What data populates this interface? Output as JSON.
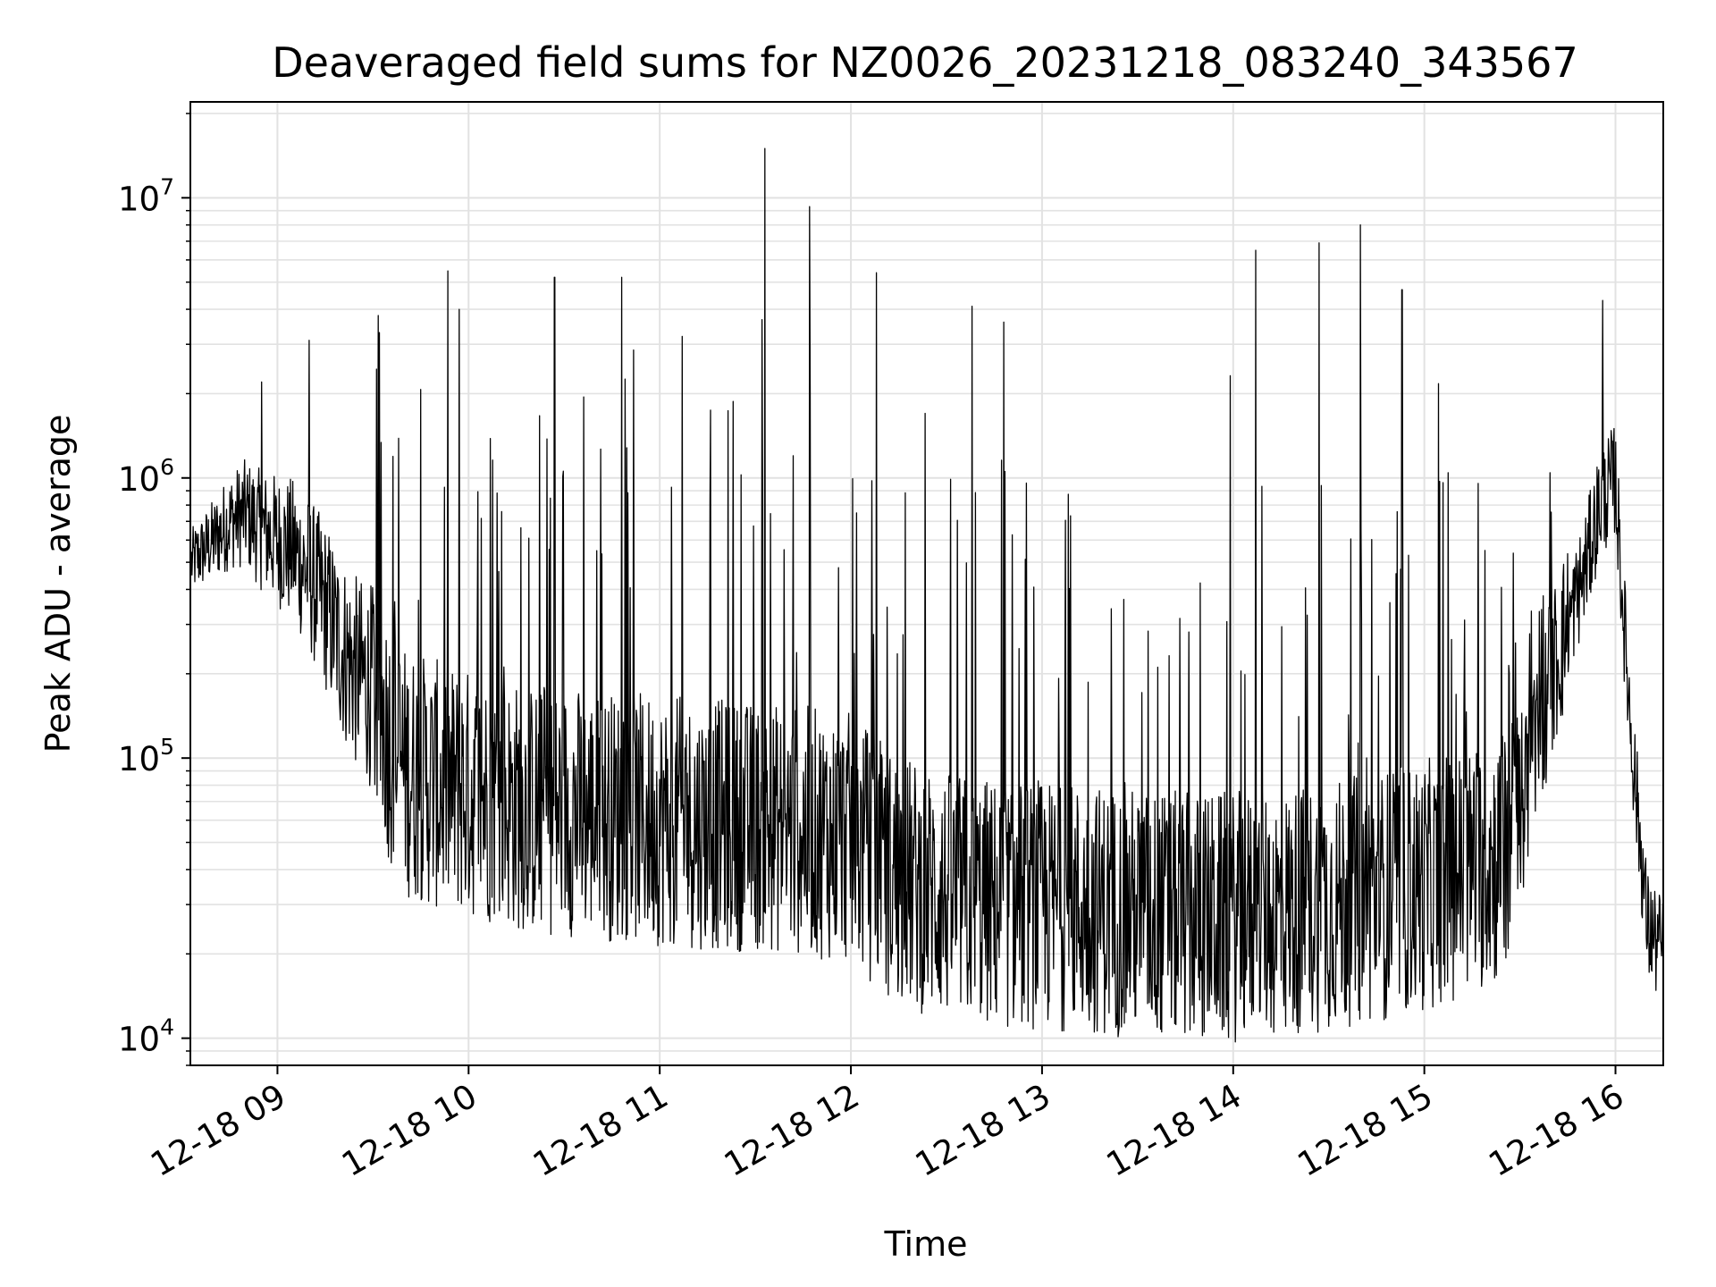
{
  "chart_data": {
    "type": "line",
    "title": "Deaveraged field sums for NZ0026_20231218_083240_343567",
    "xlabel": "Time",
    "ylabel": "Peak ADU - average",
    "yscale": "log",
    "ylim": [
      8000,
      22000000
    ],
    "xlim": [
      "2023-12-18 08:32:40",
      "2023-12-18 16:15:00"
    ],
    "grid": true,
    "line_color": "#000000",
    "x_ticks": [
      {
        "time": "2023-12-18 09:00",
        "label": "12-18 09"
      },
      {
        "time": "2023-12-18 10:00",
        "label": "12-18 10"
      },
      {
        "time": "2023-12-18 11:00",
        "label": "12-18 11"
      },
      {
        "time": "2023-12-18 12:00",
        "label": "12-18 12"
      },
      {
        "time": "2023-12-18 13:00",
        "label": "12-18 13"
      },
      {
        "time": "2023-12-18 14:00",
        "label": "12-18 14"
      },
      {
        "time": "2023-12-18 15:00",
        "label": "12-18 15"
      },
      {
        "time": "2023-12-18 16:00",
        "label": "12-18 16"
      }
    ],
    "y_ticks": [
      {
        "value": 10000,
        "base": "10",
        "exp": "4"
      },
      {
        "value": 100000,
        "base": "10",
        "exp": "5"
      },
      {
        "value": 1000000,
        "base": "10",
        "exp": "6"
      },
      {
        "value": 10000000,
        "base": "10",
        "exp": "7"
      }
    ],
    "series": [
      {
        "x": [
          "2023-12-18 08:33",
          "2023-12-18 08:40",
          "2023-12-18 08:45",
          "2023-12-18 08:50",
          "2023-12-18 08:55",
          "2023-12-18 09:00",
          "2023-12-18 09:05",
          "2023-12-18 09:10",
          "2023-12-18 09:15",
          "2023-12-18 09:20",
          "2023-12-18 09:25",
          "2023-12-18 09:30",
          "2023-12-18 09:35",
          "2023-12-18 09:40",
          "2023-12-18 09:50",
          "2023-12-18 10:00",
          "2023-12-18 10:10",
          "2023-12-18 10:20",
          "2023-12-18 10:30",
          "2023-12-18 10:45",
          "2023-12-18 11:00",
          "2023-12-18 11:15",
          "2023-12-18 11:30",
          "2023-12-18 11:45",
          "2023-12-18 12:00",
          "2023-12-18 12:10",
          "2023-12-18 12:20",
          "2023-12-18 12:30",
          "2023-12-18 12:45",
          "2023-12-18 13:00",
          "2023-12-18 13:15",
          "2023-12-18 13:30",
          "2023-12-18 13:45",
          "2023-12-18 14:00",
          "2023-12-18 14:15",
          "2023-12-18 14:30",
          "2023-12-18 14:45",
          "2023-12-18 15:00",
          "2023-12-18 15:15",
          "2023-12-18 15:25",
          "2023-12-18 15:30",
          "2023-12-18 15:40",
          "2023-12-18 15:50",
          "2023-12-18 15:55",
          "2023-12-18 16:00",
          "2023-12-18 16:02",
          "2023-12-18 16:05",
          "2023-12-18 16:10",
          "2023-12-18 16:15"
        ],
        "y": [
          500000,
          600000,
          700000,
          750000,
          650000,
          600000,
          550000,
          450000,
          350000,
          250000,
          200000,
          180000,
          120000,
          90000,
          80000,
          75000,
          70000,
          65000,
          65000,
          62000,
          60000,
          58000,
          57000,
          55000,
          52000,
          40000,
          35000,
          32000,
          30000,
          30000,
          29000,
          28000,
          27000,
          27000,
          28000,
          30000,
          32000,
          35000,
          40000,
          45000,
          60000,
          200000,
          450000,
          800000,
          1000000,
          400000,
          120000,
          25000,
          20000
        ]
      }
    ],
    "spikes": [
      {
        "x": "2023-12-18 08:55",
        "y": 2200000
      },
      {
        "x": "2023-12-18 09:10",
        "y": 3100000
      },
      {
        "x": "2023-12-18 09:32",
        "y": 3300000
      },
      {
        "x": "2023-12-18 09:57",
        "y": 4000000
      },
      {
        "x": "2023-12-18 10:27",
        "y": 5200000
      },
      {
        "x": "2023-12-18 10:48",
        "y": 5200000
      },
      {
        "x": "2023-12-18 11:07",
        "y": 3200000
      },
      {
        "x": "2023-12-18 11:33",
        "y": 15000000
      },
      {
        "x": "2023-12-18 11:47",
        "y": 9300000
      },
      {
        "x": "2023-12-18 12:08",
        "y": 5400000
      },
      {
        "x": "2023-12-18 12:38",
        "y": 4100000
      },
      {
        "x": "2023-12-18 12:48",
        "y": 3600000
      },
      {
        "x": "2023-12-18 14:07",
        "y": 6500000
      },
      {
        "x": "2023-12-18 14:27",
        "y": 6900000
      },
      {
        "x": "2023-12-18 14:40",
        "y": 8000000
      },
      {
        "x": "2023-12-18 14:53",
        "y": 4700000
      },
      {
        "x": "2023-12-18 15:56",
        "y": 4300000
      }
    ]
  }
}
